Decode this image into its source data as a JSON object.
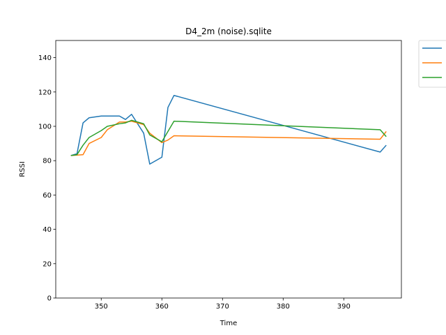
{
  "chart_data": {
    "type": "line",
    "title": "D4_2m (noise).sqlite",
    "xlabel": "Time",
    "ylabel": "RSSI",
    "xlim": [
      342.5,
      399.5
    ],
    "ylim": [
      0,
      150
    ],
    "xticks": [
      350,
      360,
      370,
      380,
      390
    ],
    "yticks": [
      0,
      20,
      40,
      60,
      80,
      100,
      120,
      140
    ],
    "xtick_labels": [
      "350",
      "360",
      "370",
      "380",
      "390"
    ],
    "ytick_labels": [
      "0",
      "20",
      "40",
      "60",
      "80",
      "100",
      "120",
      "140"
    ],
    "grid": false,
    "legend": "outside-top-right",
    "series": [
      {
        "color": "#1f77b4",
        "x": [
          345,
          346,
          347,
          348,
          350,
          353,
          354,
          355,
          357,
          358,
          360,
          361,
          362,
          396,
          397
        ],
        "y": [
          83,
          84,
          102,
          105,
          106,
          106,
          104,
          107,
          96,
          78,
          82,
          111,
          118,
          85,
          89
        ]
      },
      {
        "color": "#ff7f0e",
        "x": [
          345,
          347,
          348,
          350,
          351,
          353,
          354,
          355,
          357,
          358,
          360,
          361,
          362,
          396,
          397
        ],
        "y": [
          83,
          83.5,
          90,
          93.5,
          98,
          102.5,
          102.5,
          103,
          101,
          96,
          90.5,
          92,
          94.5,
          92.5,
          97
        ]
      },
      {
        "color": "#2ca02c",
        "x": [
          345,
          346,
          347,
          348,
          350,
          351,
          353,
          354,
          355,
          357,
          358,
          360,
          362,
          396,
          397
        ],
        "y": [
          83,
          83.5,
          89,
          93.5,
          97.5,
          100,
          101.5,
          102,
          103.5,
          101.5,
          95,
          91,
          103,
          98,
          94
        ]
      }
    ]
  }
}
